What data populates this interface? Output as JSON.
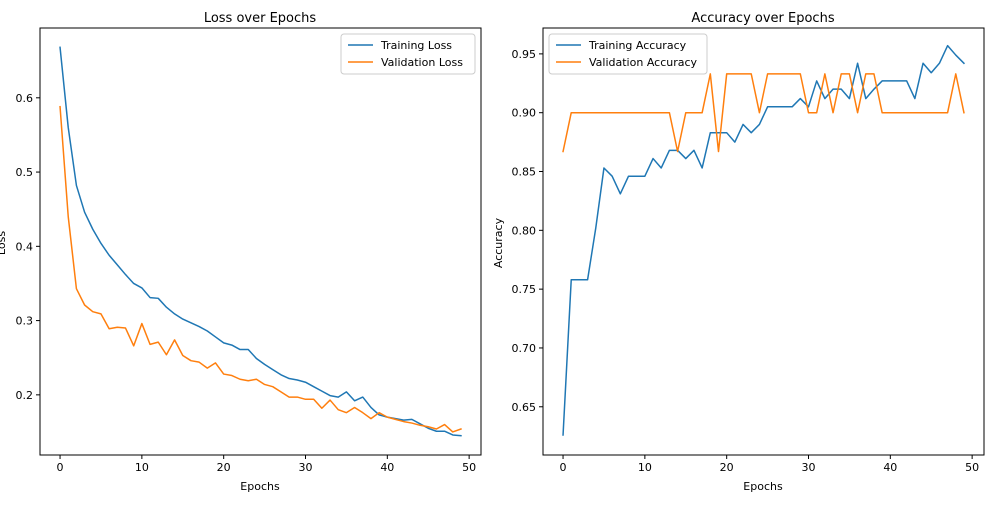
{
  "chart_data": [
    {
      "type": "line",
      "title": "Loss over Epochs",
      "xlabel": "Epochs",
      "ylabel": "Loss",
      "xlim": [
        -2.45,
        51.45
      ],
      "ylim": [
        0.119,
        0.694
      ],
      "xticks": [
        0,
        10,
        20,
        30,
        40,
        50
      ],
      "xtick_labels": [
        "0",
        "10",
        "20",
        "30",
        "40",
        "50"
      ],
      "yticks": [
        0.2,
        0.3,
        0.4,
        0.5,
        0.6
      ],
      "ytick_labels": [
        "0.2",
        "0.3",
        "0.4",
        "0.5",
        "0.6"
      ],
      "grid": false,
      "legend": "upper right",
      "series": [
        {
          "name": "Training Loss",
          "color": "#1f77b4",
          "values": [
            0.668,
            0.56,
            0.482,
            0.446,
            0.423,
            0.404,
            0.388,
            0.375,
            0.362,
            0.35,
            0.344,
            0.331,
            0.33,
            0.318,
            0.309,
            0.302,
            0.297,
            0.292,
            0.286,
            0.278,
            0.27,
            0.267,
            0.261,
            0.261,
            0.249,
            0.241,
            0.234,
            0.227,
            0.222,
            0.22,
            0.217,
            0.211,
            0.205,
            0.199,
            0.197,
            0.204,
            0.192,
            0.197,
            0.183,
            0.173,
            0.17,
            0.168,
            0.166,
            0.167,
            0.161,
            0.155,
            0.151,
            0.151,
            0.146,
            0.145
          ]
        },
        {
          "name": "Validation Loss",
          "color": "#ff7f0e",
          "values": [
            0.588,
            0.44,
            0.343,
            0.321,
            0.312,
            0.309,
            0.289,
            0.291,
            0.29,
            0.266,
            0.296,
            0.268,
            0.271,
            0.254,
            0.274,
            0.253,
            0.246,
            0.244,
            0.236,
            0.243,
            0.228,
            0.226,
            0.221,
            0.219,
            0.221,
            0.214,
            0.211,
            0.204,
            0.197,
            0.197,
            0.194,
            0.194,
            0.182,
            0.193,
            0.18,
            0.176,
            0.183,
            0.176,
            0.168,
            0.176,
            0.17,
            0.167,
            0.164,
            0.162,
            0.159,
            0.157,
            0.154,
            0.16,
            0.15,
            0.154
          ]
        }
      ]
    },
    {
      "type": "line",
      "title": "Accuracy over Epochs",
      "xlabel": "Epochs",
      "ylabel": "Accuracy",
      "xlim": [
        -2.45,
        51.45
      ],
      "ylim": [
        0.609,
        0.972
      ],
      "xticks": [
        0,
        10,
        20,
        30,
        40,
        50
      ],
      "xtick_labels": [
        "0",
        "10",
        "20",
        "30",
        "40",
        "50"
      ],
      "yticks": [
        0.65,
        0.7,
        0.75,
        0.8,
        0.85,
        0.9,
        0.95
      ],
      "ytick_labels": [
        "0.65",
        "0.70",
        "0.75",
        "0.80",
        "0.85",
        "0.90",
        "0.95"
      ],
      "grid": false,
      "legend": "upper left",
      "series": [
        {
          "name": "Training Accuracy",
          "color": "#1f77b4",
          "values": [
            0.626,
            0.758,
            0.758,
            0.758,
            0.802,
            0.853,
            0.846,
            0.831,
            0.846,
            0.846,
            0.846,
            0.861,
            0.853,
            0.868,
            0.868,
            0.861,
            0.868,
            0.853,
            0.883,
            0.883,
            0.883,
            0.875,
            0.89,
            0.883,
            0.89,
            0.905,
            0.905,
            0.905,
            0.905,
            0.912,
            0.905,
            0.927,
            0.912,
            0.92,
            0.92,
            0.912,
            0.942,
            0.912,
            0.92,
            0.927,
            0.927,
            0.927,
            0.927,
            0.912,
            0.942,
            0.934,
            0.942,
            0.957,
            0.949,
            0.942
          ]
        },
        {
          "name": "Validation Accuracy",
          "color": "#ff7f0e",
          "values": [
            0.867,
            0.9,
            0.9,
            0.9,
            0.9,
            0.9,
            0.9,
            0.9,
            0.9,
            0.9,
            0.9,
            0.9,
            0.9,
            0.9,
            0.867,
            0.9,
            0.9,
            0.9,
            0.933,
            0.867,
            0.933,
            0.933,
            0.933,
            0.933,
            0.9,
            0.933,
            0.933,
            0.933,
            0.933,
            0.933,
            0.9,
            0.9,
            0.933,
            0.9,
            0.933,
            0.933,
            0.9,
            0.933,
            0.933,
            0.9,
            0.9,
            0.9,
            0.9,
            0.9,
            0.9,
            0.9,
            0.9,
            0.9,
            0.933,
            0.9
          ]
        }
      ]
    }
  ]
}
